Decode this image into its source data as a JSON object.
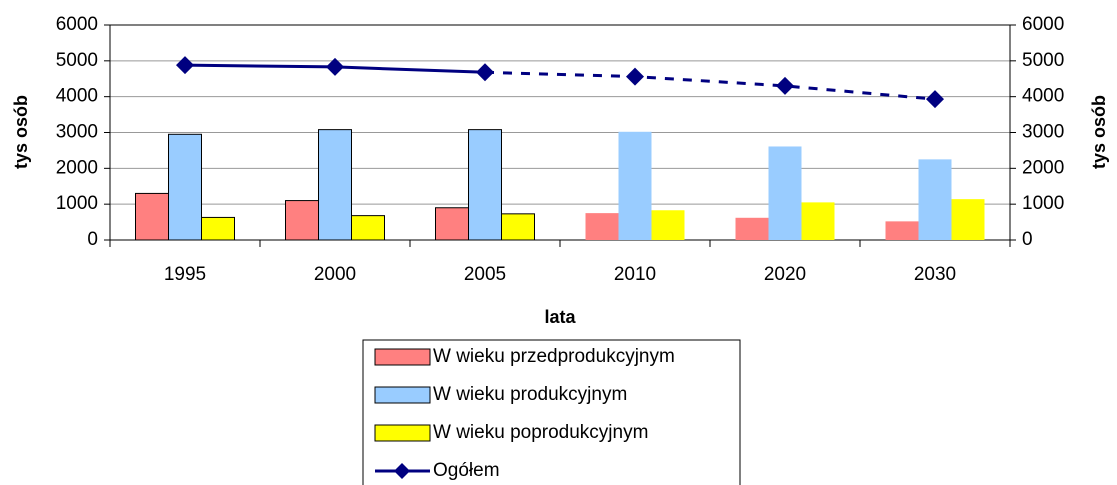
{
  "chart_data": {
    "type": "bar",
    "categories": [
      "1995",
      "2000",
      "2005",
      "2010",
      "2020",
      "2030"
    ],
    "series": [
      {
        "name": "W wieku przedprodukcyjnym",
        "color": "#ff8080",
        "values": [
          1300,
          1100,
          900,
          750,
          620,
          520
        ]
      },
      {
        "name": "W wieku produkcyjnym",
        "color": "#99ccff",
        "values": [
          2950,
          3080,
          3080,
          3020,
          2610,
          2250
        ]
      },
      {
        "name": "W wieku poprodukcyjnym",
        "color": "#ffff00",
        "values": [
          630,
          680,
          730,
          830,
          1050,
          1140
        ]
      },
      {
        "name": "Ogółem",
        "color": "#000080",
        "type": "line",
        "axis": "y2",
        "values": [
          4880,
          4830,
          4680,
          4560,
          4300,
          3930
        ]
      }
    ],
    "projected_from": 3,
    "x_label": "lata",
    "y_label": "tys osób",
    "y2_label": "tys osób",
    "ylim": [
      0,
      6000
    ],
    "yticks": [
      0,
      1000,
      2000,
      3000,
      4000,
      5000,
      6000
    ],
    "y2lim": [
      0,
      6000
    ],
    "y2ticks": [
      0,
      1000,
      2000,
      3000,
      4000,
      5000,
      6000
    ],
    "grid": true,
    "legend": "bottom"
  }
}
